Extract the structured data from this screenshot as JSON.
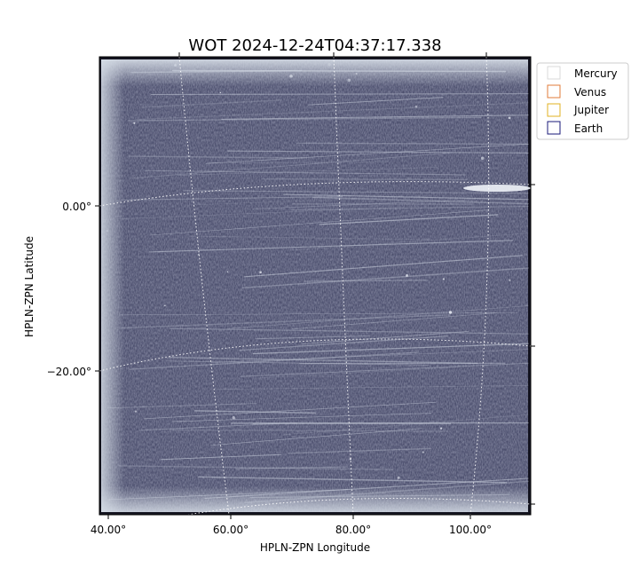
{
  "title": "WOT 2024-12-24T04:37:17.338",
  "x_axis": {
    "label": "HPLN-ZPN Longitude",
    "ticks": [
      "40.00°",
      "60.00°",
      "80.00°",
      "100.00°"
    ]
  },
  "y_axis": {
    "label": "HPLN-ZPN Latitude",
    "ticks": [
      "0.00°",
      "−20.00°"
    ]
  },
  "legend": {
    "placement": "top-right",
    "items": [
      {
        "name": "Mercury",
        "color": "#d9d9d9"
      },
      {
        "name": "Venus",
        "color": "#e07b39"
      },
      {
        "name": "Jupiter",
        "color": "#e0b020"
      },
      {
        "name": "Earth",
        "color": "#1a1a7a"
      }
    ]
  },
  "colors": {
    "image_base": "#4a4d6c",
    "grid": "#ffffff"
  }
}
